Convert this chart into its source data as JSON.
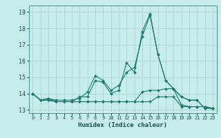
{
  "xlabel": "Humidex (Indice chaleur)",
  "xlim": [
    -0.5,
    23.5
  ],
  "ylim": [
    12.8,
    19.4
  ],
  "yticks": [
    13,
    14,
    15,
    16,
    17,
    18,
    19
  ],
  "xticks": [
    0,
    1,
    2,
    3,
    4,
    5,
    6,
    7,
    8,
    9,
    10,
    11,
    12,
    13,
    14,
    15,
    16,
    17,
    18,
    19,
    20,
    21,
    22,
    23
  ],
  "bg_color": "#c6ecec",
  "grid_color": "#aed4d4",
  "line_color": "#1a7a6e",
  "lines": [
    [
      14.0,
      13.6,
      13.7,
      13.6,
      13.6,
      13.6,
      13.7,
      14.1,
      15.1,
      14.8,
      14.2,
      14.5,
      15.3,
      15.6,
      17.5,
      18.8,
      16.4,
      14.8,
      14.3,
      13.8,
      13.6,
      13.6,
      13.1,
      13.1
    ],
    [
      14.0,
      13.6,
      13.7,
      13.5,
      13.5,
      13.5,
      13.8,
      13.8,
      14.8,
      14.7,
      14.0,
      14.2,
      15.9,
      15.3,
      17.8,
      18.9,
      16.4,
      14.8,
      14.3,
      13.8,
      13.6,
      13.6,
      13.1,
      13.1
    ],
    [
      14.0,
      13.6,
      13.6,
      13.5,
      13.5,
      13.5,
      13.5,
      13.5,
      13.5,
      13.5,
      13.5,
      13.5,
      13.5,
      13.5,
      14.1,
      14.2,
      14.2,
      14.3,
      14.3,
      13.3,
      13.2,
      13.2,
      13.2,
      13.1
    ],
    [
      14.0,
      13.6,
      13.6,
      13.5,
      13.5,
      13.5,
      13.5,
      13.5,
      13.5,
      13.5,
      13.5,
      13.5,
      13.5,
      13.5,
      13.5,
      13.5,
      13.8,
      13.8,
      13.8,
      13.2,
      13.2,
      13.2,
      13.2,
      13.1
    ]
  ]
}
